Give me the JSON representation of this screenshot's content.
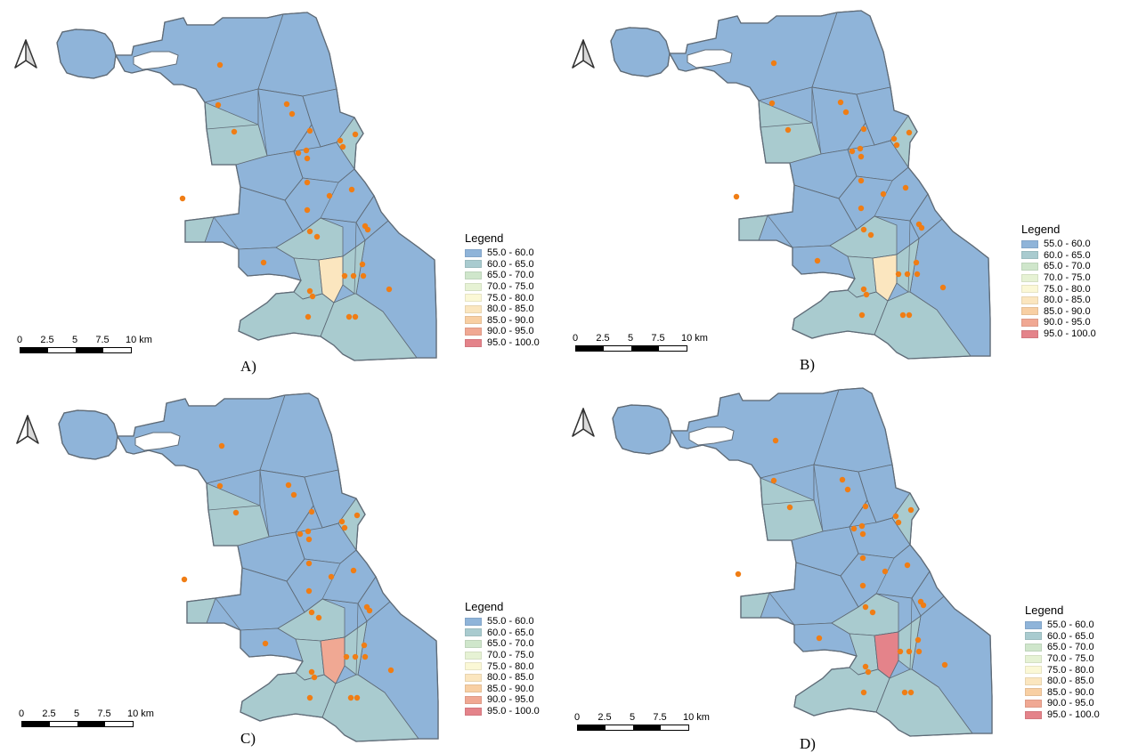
{
  "legend": {
    "title": "Legend",
    "classes": [
      {
        "label": "55.0 - 60.0",
        "color": "#8fb4d9"
      },
      {
        "label": "60.0 - 65.0",
        "color": "#a9cbcf"
      },
      {
        "label": "65.0 - 70.0",
        "color": "#cfe6cb"
      },
      {
        "label": "70.0 - 75.0",
        "color": "#e6f2d4"
      },
      {
        "label": "75.0 - 80.0",
        "color": "#fbf8d6"
      },
      {
        "label": "80.0 - 85.0",
        "color": "#fbe6bf"
      },
      {
        "label": "85.0 - 90.0",
        "color": "#f8cfa3"
      },
      {
        "label": "90.0 - 95.0",
        "color": "#f0a893"
      },
      {
        "label": "95.0 - 100.0",
        "color": "#e4838a"
      }
    ]
  },
  "scale_bar": {
    "ticks": [
      "0",
      "2.5",
      "5",
      "7.5",
      "10 km"
    ]
  },
  "panels": [
    {
      "label": "A)",
      "highlight_class": "80.0 - 85.0",
      "highlight_color": "#fbe6bf"
    },
    {
      "label": "B)",
      "highlight_class": "80.0 - 85.0",
      "highlight_color": "#fbe6bf"
    },
    {
      "label": "C)",
      "highlight_class": "90.0 - 95.0",
      "highlight_color": "#f0a893"
    },
    {
      "label": "D)",
      "highlight_class": "95.0 - 100.0",
      "highlight_color": "#e4838a"
    }
  ],
  "colors": {
    "blue_zone": "#8fb4d9",
    "teal_zone": "#a9cbcf",
    "boundary": "#5f6b77",
    "station_dot": "#f07d14"
  },
  "icons": {
    "north_arrow": "north-arrow-icon",
    "station": "station-point"
  }
}
